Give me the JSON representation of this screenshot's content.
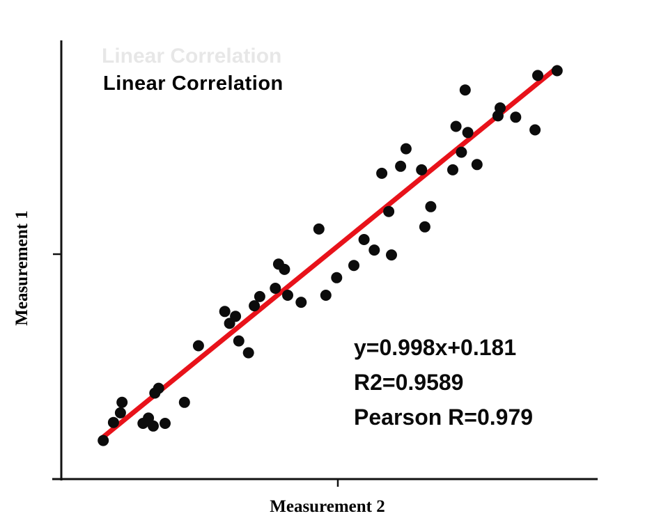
{
  "chart_data": {
    "type": "scatter",
    "title": "Linear Correlation",
    "ghost_title": "Linear Correlation",
    "xlabel": "Measurement 2",
    "ylabel": "Measurement 1",
    "xlim": [
      0,
      10
    ],
    "ylim": [
      0,
      10
    ],
    "grid": false,
    "legend": "none",
    "point_color": "#0c0c0c",
    "line_color": "#e8121a",
    "axis_color": "#111111",
    "trendline": {
      "slope": 0.998,
      "intercept": 0.181,
      "x_start": 0.78,
      "x_end": 9.22
    },
    "annotations": [
      "y=0.998x+0.181",
      "R2=0.9589",
      "Pearson R=0.979"
    ],
    "points": [
      [
        0.78,
        0.88
      ],
      [
        0.97,
        1.29
      ],
      [
        1.1,
        1.51
      ],
      [
        1.13,
        1.75
      ],
      [
        1.52,
        1.27
      ],
      [
        1.62,
        1.39
      ],
      [
        1.71,
        1.21
      ],
      [
        1.74,
        1.96
      ],
      [
        1.81,
        2.07
      ],
      [
        1.93,
        1.27
      ],
      [
        2.29,
        1.75
      ],
      [
        2.55,
        3.04
      ],
      [
        3.04,
        3.82
      ],
      [
        3.13,
        3.55
      ],
      [
        3.24,
        3.71
      ],
      [
        3.3,
        3.15
      ],
      [
        3.48,
        2.88
      ],
      [
        3.59,
        3.95
      ],
      [
        3.69,
        4.16
      ],
      [
        3.98,
        4.35
      ],
      [
        4.04,
        4.9
      ],
      [
        4.15,
        4.78
      ],
      [
        4.21,
        4.19
      ],
      [
        4.46,
        4.03
      ],
      [
        4.79,
        5.7
      ],
      [
        4.92,
        4.19
      ],
      [
        5.12,
        4.59
      ],
      [
        5.44,
        4.87
      ],
      [
        5.63,
        5.46
      ],
      [
        5.82,
        5.22
      ],
      [
        5.96,
        6.97
      ],
      [
        6.09,
        6.1
      ],
      [
        6.14,
        5.11
      ],
      [
        6.31,
        7.13
      ],
      [
        6.41,
        7.53
      ],
      [
        6.7,
        7.05
      ],
      [
        6.76,
        5.75
      ],
      [
        6.87,
        6.21
      ],
      [
        7.28,
        7.05
      ],
      [
        7.34,
        8.04
      ],
      [
        7.44,
        7.45
      ],
      [
        7.51,
        8.87
      ],
      [
        7.56,
        7.9
      ],
      [
        7.73,
        7.17
      ],
      [
        8.12,
        8.28
      ],
      [
        8.16,
        8.46
      ],
      [
        8.45,
        8.25
      ],
      [
        8.81,
        7.96
      ],
      [
        8.86,
        9.2
      ],
      [
        9.22,
        9.31
      ]
    ]
  }
}
